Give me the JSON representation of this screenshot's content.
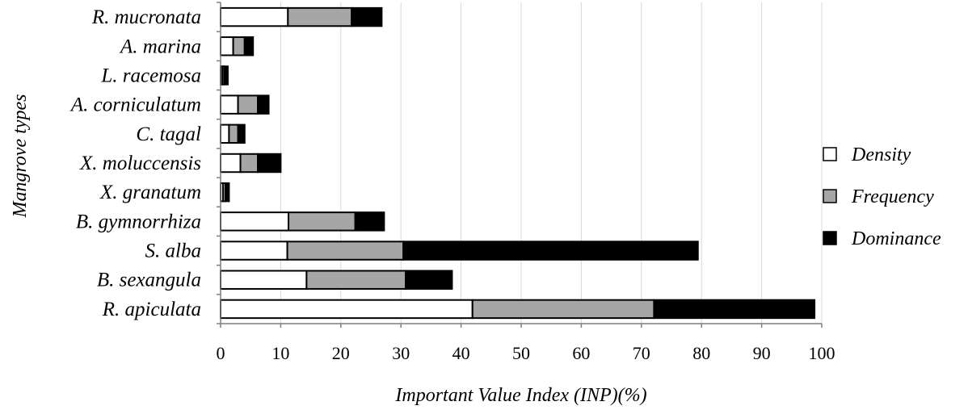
{
  "chart_data": {
    "type": "bar",
    "orientation": "horizontal",
    "stacked": true,
    "title": "",
    "xlabel": "Important Value Index (INP)(%)",
    "ylabel": "Mangrove types",
    "xlim": [
      0,
      100
    ],
    "xticks": [
      0,
      10,
      20,
      30,
      40,
      50,
      60,
      70,
      80,
      90,
      100
    ],
    "xtick_labels": [
      "0",
      "10",
      "20",
      "30",
      "40",
      "50",
      "60",
      "70",
      "80",
      "90",
      "100"
    ],
    "grid": true,
    "legend_position": "right",
    "categories": [
      "R. mucronata",
      "A. marina",
      "L. racemosa",
      "A. corniculatum",
      "C. tagal",
      "X. moluccensis",
      "X. granatum",
      "B. gymnorrhiza",
      "S. alba",
      "B. sexangula",
      "R. apiculata"
    ],
    "series": [
      {
        "name": "Density",
        "color": "#ffffff",
        "values": [
          11.2,
          2.1,
          0.3,
          2.9,
          1.4,
          3.3,
          0.4,
          11.3,
          11.1,
          14.3,
          41.9
        ]
      },
      {
        "name": "Frequency",
        "color": "#a6a6a6",
        "values": [
          10.6,
          1.9,
          0.3,
          3.3,
          1.5,
          2.9,
          0.4,
          11.1,
          19.3,
          16.5,
          30.2
        ]
      },
      {
        "name": "Dominance",
        "color": "#000000",
        "values": [
          5.0,
          1.4,
          0.6,
          1.8,
          1.1,
          3.8,
          0.6,
          4.8,
          49.0,
          7.7,
          26.7
        ]
      }
    ]
  }
}
